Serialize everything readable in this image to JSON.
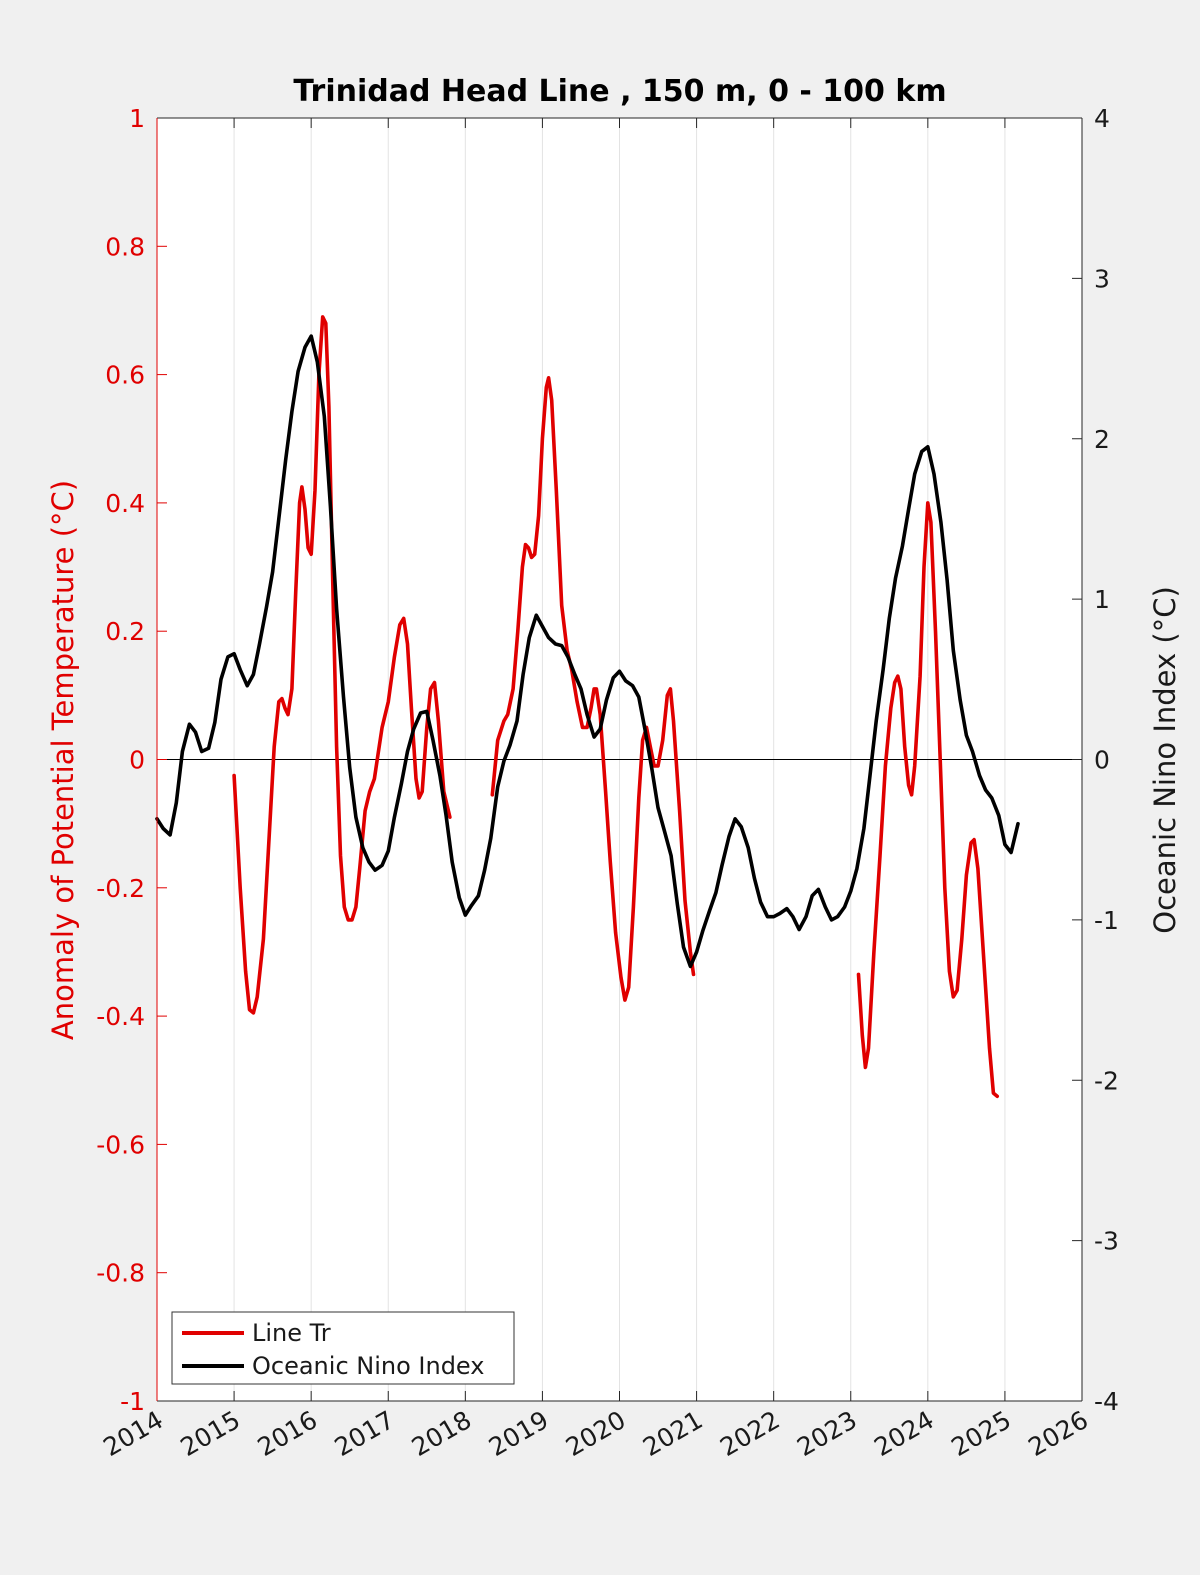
{
  "chart_data": {
    "type": "line",
    "title": "Trinidad Head Line , 150 m, 0 - 100 km",
    "ylabel_left": "Anomaly of Potential Temperature (°C)",
    "ylabel_right": "Oceanic Nino Index (°C)",
    "xlim": [
      2014,
      2026
    ],
    "ylim_left": [
      -1,
      1
    ],
    "ylim_right": [
      -4,
      4
    ],
    "x_ticks": [
      "2014",
      "2015",
      "2016",
      "2017",
      "2018",
      "2019",
      "2020",
      "2021",
      "2022",
      "2023",
      "2024",
      "2025",
      "2026"
    ],
    "y_left_ticks": [
      "1",
      "0.8",
      "0.6",
      "0.4",
      "0.2",
      "0",
      "-0.2",
      "-0.4",
      "-0.6",
      "-0.8",
      "-1"
    ],
    "y_right_ticks": [
      "4",
      "3",
      "2",
      "1",
      "0",
      "-1",
      "-2",
      "-3",
      "-4"
    ],
    "grid": "vertical",
    "legend_position": "bottom-left",
    "colors": {
      "line_tr": "#e00000",
      "oni": "#000000",
      "axis_left": "#e00000",
      "background": "#f0f0f0"
    },
    "series": [
      {
        "name": "Line Tr",
        "axis": "left",
        "segments": [
          [
            [
              2015.0,
              -0.025
            ],
            [
              2015.08,
              -0.2
            ],
            [
              2015.15,
              -0.33
            ],
            [
              2015.2,
              -0.39
            ],
            [
              2015.25,
              -0.395
            ],
            [
              2015.3,
              -0.37
            ],
            [
              2015.38,
              -0.28
            ],
            [
              2015.45,
              -0.13
            ],
            [
              2015.52,
              0.02
            ],
            [
              2015.58,
              0.09
            ],
            [
              2015.62,
              0.095
            ],
            [
              2015.66,
              0.08
            ],
            [
              2015.7,
              0.07
            ],
            [
              2015.75,
              0.11
            ],
            [
              2015.8,
              0.26
            ],
            [
              2015.85,
              0.4
            ],
            [
              2015.88,
              0.425
            ],
            [
              2015.92,
              0.39
            ],
            [
              2015.96,
              0.33
            ],
            [
              2016.0,
              0.32
            ],
            [
              2016.05,
              0.42
            ],
            [
              2016.1,
              0.6
            ],
            [
              2016.15,
              0.69
            ],
            [
              2016.19,
              0.68
            ],
            [
              2016.23,
              0.55
            ],
            [
              2016.28,
              0.28
            ],
            [
              2016.33,
              0.02
            ],
            [
              2016.38,
              -0.15
            ],
            [
              2016.43,
              -0.23
            ],
            [
              2016.48,
              -0.25
            ],
            [
              2016.53,
              -0.25
            ],
            [
              2016.58,
              -0.23
            ],
            [
              2016.63,
              -0.17
            ],
            [
              2016.7,
              -0.08
            ],
            [
              2016.76,
              -0.05
            ],
            [
              2016.82,
              -0.03
            ],
            [
              2016.87,
              0.01
            ],
            [
              2016.92,
              0.05
            ],
            [
              2017.0,
              0.09
            ],
            [
              2017.08,
              0.16
            ],
            [
              2017.15,
              0.21
            ],
            [
              2017.2,
              0.22
            ],
            [
              2017.25,
              0.18
            ],
            [
              2017.3,
              0.08
            ],
            [
              2017.36,
              -0.03
            ],
            [
              2017.4,
              -0.06
            ],
            [
              2017.44,
              -0.05
            ],
            [
              2017.5,
              0.05
            ],
            [
              2017.55,
              0.11
            ],
            [
              2017.6,
              0.12
            ],
            [
              2017.65,
              0.06
            ],
            [
              2017.72,
              -0.05
            ],
            [
              2017.8,
              -0.09
            ]
          ],
          [
            [
              2018.35,
              -0.055
            ],
            [
              2018.42,
              0.03
            ],
            [
              2018.5,
              0.06
            ],
            [
              2018.55,
              0.07
            ],
            [
              2018.62,
              0.11
            ],
            [
              2018.68,
              0.2
            ],
            [
              2018.74,
              0.3
            ],
            [
              2018.78,
              0.335
            ],
            [
              2018.82,
              0.33
            ],
            [
              2018.86,
              0.315
            ],
            [
              2018.9,
              0.32
            ],
            [
              2018.95,
              0.38
            ],
            [
              2019.0,
              0.5
            ],
            [
              2019.05,
              0.58
            ],
            [
              2019.08,
              0.595
            ],
            [
              2019.12,
              0.56
            ],
            [
              2019.18,
              0.42
            ],
            [
              2019.25,
              0.24
            ],
            [
              2019.32,
              0.17
            ],
            [
              2019.38,
              0.14
            ],
            [
              2019.45,
              0.09
            ],
            [
              2019.52,
              0.05
            ],
            [
              2019.58,
              0.05
            ],
            [
              2019.63,
              0.08
            ],
            [
              2019.67,
              0.11
            ],
            [
              2019.7,
              0.11
            ],
            [
              2019.75,
              0.07
            ],
            [
              2019.82,
              -0.05
            ],
            [
              2019.88,
              -0.16
            ],
            [
              2019.95,
              -0.27
            ],
            [
              2020.02,
              -0.34
            ],
            [
              2020.07,
              -0.375
            ],
            [
              2020.12,
              -0.355
            ],
            [
              2020.18,
              -0.23
            ],
            [
              2020.25,
              -0.06
            ],
            [
              2020.3,
              0.03
            ],
            [
              2020.35,
              0.05
            ],
            [
              2020.4,
              0.02
            ],
            [
              2020.45,
              -0.01
            ],
            [
              2020.5,
              -0.01
            ],
            [
              2020.56,
              0.03
            ],
            [
              2020.62,
              0.1
            ],
            [
              2020.66,
              0.11
            ],
            [
              2020.7,
              0.06
            ],
            [
              2020.78,
              -0.08
            ],
            [
              2020.85,
              -0.22
            ],
            [
              2020.92,
              -0.3
            ],
            [
              2020.96,
              -0.335
            ]
          ],
          [
            [
              2023.1,
              -0.335
            ],
            [
              2023.15,
              -0.43
            ],
            [
              2023.19,
              -0.48
            ],
            [
              2023.23,
              -0.45
            ],
            [
              2023.3,
              -0.3
            ],
            [
              2023.38,
              -0.15
            ],
            [
              2023.45,
              -0.01
            ],
            [
              2023.52,
              0.08
            ],
            [
              2023.57,
              0.12
            ],
            [
              2023.61,
              0.13
            ],
            [
              2023.65,
              0.11
            ],
            [
              2023.7,
              0.02
            ],
            [
              2023.75,
              -0.04
            ],
            [
              2023.79,
              -0.055
            ],
            [
              2023.83,
              -0.01
            ],
            [
              2023.9,
              0.13
            ],
            [
              2023.95,
              0.3
            ],
            [
              2024.0,
              0.4
            ],
            [
              2024.04,
              0.37
            ],
            [
              2024.1,
              0.2
            ],
            [
              2024.16,
              0.0
            ],
            [
              2024.22,
              -0.2
            ],
            [
              2024.28,
              -0.33
            ],
            [
              2024.33,
              -0.37
            ],
            [
              2024.38,
              -0.36
            ],
            [
              2024.44,
              -0.28
            ],
            [
              2024.5,
              -0.18
            ],
            [
              2024.56,
              -0.13
            ],
            [
              2024.6,
              -0.125
            ],
            [
              2024.65,
              -0.17
            ],
            [
              2024.72,
              -0.3
            ],
            [
              2024.8,
              -0.45
            ],
            [
              2024.85,
              -0.52
            ],
            [
              2024.9,
              -0.525
            ]
          ]
        ]
      },
      {
        "name": "Oceanic Nino Index",
        "axis": "right",
        "points": [
          [
            2014.0,
            -0.37
          ],
          [
            2014.08,
            -0.43
          ],
          [
            2014.17,
            -0.47
          ],
          [
            2014.25,
            -0.27
          ],
          [
            2014.33,
            0.05
          ],
          [
            2014.42,
            0.22
          ],
          [
            2014.5,
            0.17
          ],
          [
            2014.58,
            0.05
          ],
          [
            2014.67,
            0.07
          ],
          [
            2014.75,
            0.23
          ],
          [
            2014.83,
            0.5
          ],
          [
            2014.92,
            0.64
          ],
          [
            2015.0,
            0.66
          ],
          [
            2015.08,
            0.56
          ],
          [
            2015.17,
            0.46
          ],
          [
            2015.25,
            0.53
          ],
          [
            2015.33,
            0.72
          ],
          [
            2015.42,
            0.95
          ],
          [
            2015.5,
            1.17
          ],
          [
            2015.58,
            1.5
          ],
          [
            2015.67,
            1.87
          ],
          [
            2015.75,
            2.17
          ],
          [
            2015.83,
            2.42
          ],
          [
            2015.92,
            2.57
          ],
          [
            2016.0,
            2.64
          ],
          [
            2016.08,
            2.48
          ],
          [
            2016.17,
            2.14
          ],
          [
            2016.25,
            1.58
          ],
          [
            2016.33,
            0.94
          ],
          [
            2016.42,
            0.39
          ],
          [
            2016.5,
            -0.05
          ],
          [
            2016.58,
            -0.36
          ],
          [
            2016.67,
            -0.55
          ],
          [
            2016.75,
            -0.64
          ],
          [
            2016.83,
            -0.69
          ],
          [
            2016.92,
            -0.66
          ],
          [
            2017.0,
            -0.57
          ],
          [
            2017.08,
            -0.36
          ],
          [
            2017.17,
            -0.15
          ],
          [
            2017.25,
            0.05
          ],
          [
            2017.33,
            0.19
          ],
          [
            2017.42,
            0.29
          ],
          [
            2017.5,
            0.3
          ],
          [
            2017.58,
            0.12
          ],
          [
            2017.67,
            -0.1
          ],
          [
            2017.75,
            -0.35
          ],
          [
            2017.83,
            -0.64
          ],
          [
            2017.92,
            -0.86
          ],
          [
            2018.0,
            -0.97
          ],
          [
            2018.08,
            -0.91
          ],
          [
            2018.17,
            -0.85
          ],
          [
            2018.25,
            -0.69
          ],
          [
            2018.33,
            -0.49
          ],
          [
            2018.42,
            -0.17
          ],
          [
            2018.5,
            -0.01
          ],
          [
            2018.58,
            0.09
          ],
          [
            2018.67,
            0.24
          ],
          [
            2018.75,
            0.53
          ],
          [
            2018.83,
            0.76
          ],
          [
            2018.92,
            0.9
          ],
          [
            2019.0,
            0.83
          ],
          [
            2019.08,
            0.76
          ],
          [
            2019.17,
            0.72
          ],
          [
            2019.25,
            0.71
          ],
          [
            2019.33,
            0.64
          ],
          [
            2019.42,
            0.53
          ],
          [
            2019.5,
            0.44
          ],
          [
            2019.58,
            0.28
          ],
          [
            2019.67,
            0.14
          ],
          [
            2019.75,
            0.19
          ],
          [
            2019.83,
            0.37
          ],
          [
            2019.92,
            0.51
          ],
          [
            2020.0,
            0.55
          ],
          [
            2020.08,
            0.49
          ],
          [
            2020.17,
            0.46
          ],
          [
            2020.25,
            0.39
          ],
          [
            2020.33,
            0.19
          ],
          [
            2020.42,
            -0.06
          ],
          [
            2020.5,
            -0.3
          ],
          [
            2020.58,
            -0.44
          ],
          [
            2020.67,
            -0.6
          ],
          [
            2020.75,
            -0.9
          ],
          [
            2020.83,
            -1.17
          ],
          [
            2020.92,
            -1.29
          ],
          [
            2021.0,
            -1.2
          ],
          [
            2021.08,
            -1.07
          ],
          [
            2021.17,
            -0.94
          ],
          [
            2021.25,
            -0.83
          ],
          [
            2021.33,
            -0.66
          ],
          [
            2021.42,
            -0.48
          ],
          [
            2021.5,
            -0.37
          ],
          [
            2021.58,
            -0.42
          ],
          [
            2021.67,
            -0.55
          ],
          [
            2021.75,
            -0.74
          ],
          [
            2021.83,
            -0.89
          ],
          [
            2021.92,
            -0.98
          ],
          [
            2022.0,
            -0.98
          ],
          [
            2022.08,
            -0.96
          ],
          [
            2022.17,
            -0.93
          ],
          [
            2022.25,
            -0.98
          ],
          [
            2022.33,
            -1.06
          ],
          [
            2022.42,
            -0.98
          ],
          [
            2022.5,
            -0.85
          ],
          [
            2022.58,
            -0.81
          ],
          [
            2022.67,
            -0.92
          ],
          [
            2022.75,
            -1.0
          ],
          [
            2022.83,
            -0.98
          ],
          [
            2022.92,
            -0.92
          ],
          [
            2023.0,
            -0.82
          ],
          [
            2023.08,
            -0.68
          ],
          [
            2023.17,
            -0.43
          ],
          [
            2023.25,
            -0.1
          ],
          [
            2023.33,
            0.24
          ],
          [
            2023.42,
            0.56
          ],
          [
            2023.5,
            0.88
          ],
          [
            2023.58,
            1.13
          ],
          [
            2023.67,
            1.33
          ],
          [
            2023.75,
            1.56
          ],
          [
            2023.83,
            1.78
          ],
          [
            2023.92,
            1.92
          ],
          [
            2024.0,
            1.95
          ],
          [
            2024.08,
            1.78
          ],
          [
            2024.17,
            1.48
          ],
          [
            2024.25,
            1.12
          ],
          [
            2024.33,
            0.68
          ],
          [
            2024.42,
            0.37
          ],
          [
            2024.5,
            0.15
          ],
          [
            2024.58,
            0.05
          ],
          [
            2024.67,
            -0.1
          ],
          [
            2024.75,
            -0.19
          ],
          [
            2024.83,
            -0.24
          ],
          [
            2024.92,
            -0.35
          ],
          [
            2025.0,
            -0.53
          ],
          [
            2025.08,
            -0.58
          ],
          [
            2025.17,
            -0.4
          ]
        ]
      }
    ]
  },
  "legend": {
    "items": [
      {
        "label": "Line Tr",
        "color": "#e00000"
      },
      {
        "label": "Oceanic Nino Index",
        "color": "#000000"
      }
    ]
  }
}
